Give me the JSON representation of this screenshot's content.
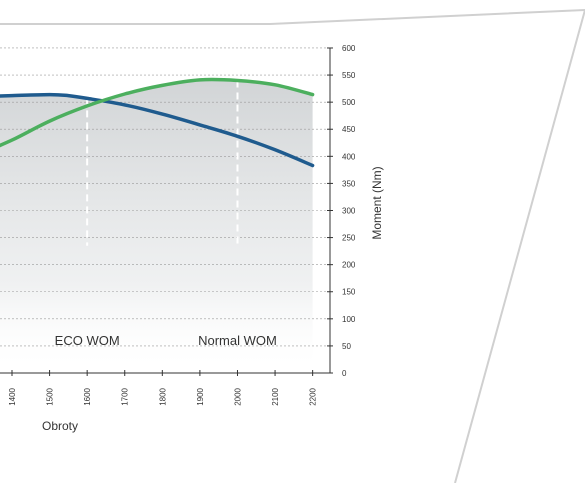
{
  "colors": {
    "panel_border": "#d0d0d0",
    "grid": "#9a9a9a",
    "axis": "#333333",
    "curve_blue": "#1f5b8e",
    "curve_green": "#4caf5e",
    "marker": "#ffffff"
  },
  "chart_data": {
    "type": "line",
    "xlabel": "Obroty",
    "ylabel": "Moment (Nm)",
    "x_ticks": [
      1400,
      1500,
      1600,
      1700,
      1800,
      1900,
      2000,
      2100,
      2200
    ],
    "y_ticks": [
      0,
      50,
      100,
      150,
      200,
      250,
      300,
      350,
      400,
      450,
      500,
      550,
      600
    ],
    "ylim": [
      0,
      600
    ],
    "grid": "horizontal dashed",
    "shaded_area_under_max_curve": true,
    "series": [
      {
        "key": "blue",
        "color": "#1f5b8e",
        "x": [
          1300,
          1400,
          1500,
          1550,
          1600,
          1700,
          1800,
          1900,
          2000,
          2100,
          2200
        ],
        "y": [
          510,
          512,
          514,
          512,
          507,
          495,
          478,
          458,
          437,
          412,
          383
        ]
      },
      {
        "key": "green",
        "color": "#4caf5e",
        "x": [
          1300,
          1400,
          1500,
          1600,
          1700,
          1800,
          1900,
          2000,
          2100,
          2200
        ],
        "y": [
          400,
          430,
          465,
          493,
          515,
          531,
          541,
          540,
          532,
          514
        ]
      }
    ],
    "annotations": [
      {
        "x": 1600,
        "label": "ECO WOM"
      },
      {
        "x": 2000,
        "label": "Normal WOM"
      }
    ]
  }
}
